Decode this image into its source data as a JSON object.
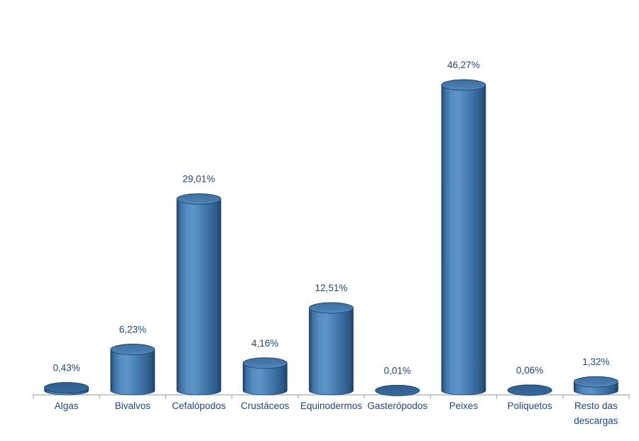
{
  "chart_data": {
    "type": "bar",
    "style": "3d-cylinder",
    "title": "",
    "xlabel": "",
    "ylabel": "",
    "categories": [
      "Algas",
      "Bivalvos",
      "Cefalópodos",
      "Crustáceos",
      "Equinodermos",
      "Gasterópodos",
      "Peixes",
      "Poliquetos",
      "Resto das descargas"
    ],
    "values": [
      0.43,
      6.23,
      29.01,
      4.16,
      12.51,
      0.01,
      46.27,
      0.06,
      1.32
    ],
    "value_labels": [
      "0,43%",
      "6,23%",
      "29,01%",
      "4,16%",
      "12,51%",
      "0,01%",
      "46,27%",
      "0,06%",
      "1,32%"
    ],
    "decimal_separator": ",",
    "unit": "%",
    "ylim": [
      0,
      50
    ],
    "grid": false,
    "legend": false,
    "y_axis_visible": false,
    "colors": {
      "bar_fill": "#4F81BD",
      "bar_highlight": "#5E94C9",
      "bar_shadow": "#2A5580",
      "bar_outline": "#1F4365",
      "disk_fill": "#2E5E8F",
      "label_text": "#1F497D",
      "axis_line": "#ABABAB",
      "background": "#FFFFFF"
    }
  }
}
